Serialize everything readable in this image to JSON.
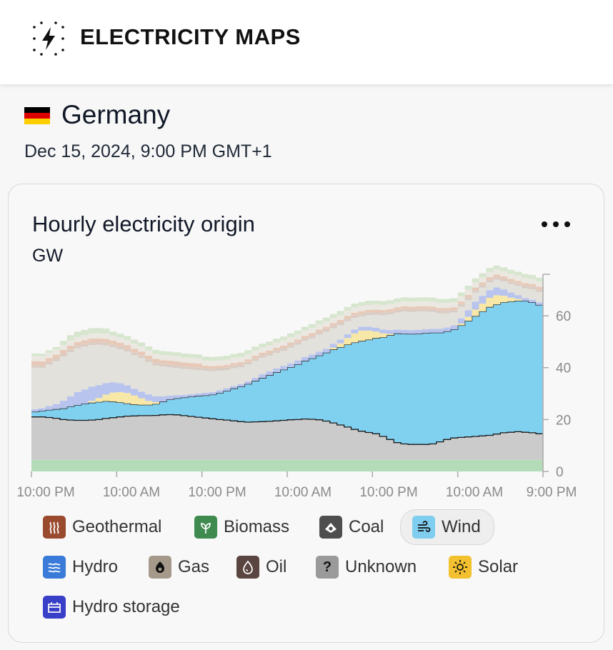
{
  "header": {
    "brand": "ELECTRICITY MAPS",
    "logo_icon": "lightning-dots-icon"
  },
  "zone": {
    "country": "Germany",
    "flag_colors": [
      "#000000",
      "#dd0000",
      "#ffce00"
    ],
    "datetime": "Dec 15, 2024, 9:00 PM GMT+1"
  },
  "card": {
    "title": "Hourly electricity origin",
    "unit": "GW",
    "menu_icon": "more-dots-icon"
  },
  "chart_data": {
    "type": "area",
    "stacked": true,
    "y_unit": "GW",
    "ylim": [
      0,
      76
    ],
    "y_ticks": [
      0,
      20,
      40,
      60
    ],
    "y_tick_labels": [
      "0",
      "20",
      "40",
      "60"
    ],
    "x_tick_labels": [
      "10:00 PM",
      "10:00 AM",
      "10:00 PM",
      "10:00 AM",
      "10:00 PM",
      "10:00 AM",
      "9:00 PM"
    ],
    "x_points_per_interval": 12,
    "highlighted_series": "Wind",
    "series": [
      {
        "name": "Biomass",
        "color": "#b5dcb8",
        "values": [
          4.5,
          4.5,
          4.5,
          4.5,
          4.5,
          4.5,
          4.5,
          4.5,
          4.5,
          4.5,
          4.5,
          4.5,
          4.5,
          4.5,
          4.5,
          4.5,
          4.5,
          4.5,
          4.5,
          4.5,
          4.5,
          4.5,
          4.5,
          4.5,
          4.5,
          4.5,
          4.5,
          4.5,
          4.5,
          4.5,
          4.5,
          4.5,
          4.5,
          4.5,
          4.5,
          4.5,
          4.5,
          4.5,
          4.5,
          4.5,
          4.5,
          4.5,
          4.5,
          4.5,
          4.5,
          4.5,
          4.5,
          4.5,
          4.5,
          4.5,
          4.5,
          4.5,
          4.5,
          4.5,
          4.5,
          4.5,
          4.5,
          4.5,
          4.5,
          4.5,
          4.5,
          4.5,
          4.5,
          4.5,
          4.5,
          4.5,
          4.5,
          4.5,
          4.5,
          4.5,
          4.5,
          4.5
        ]
      },
      {
        "name": "Coal",
        "color": "#cbcbcb",
        "values": [
          16.5,
          16.5,
          16.3,
          16.0,
          15.5,
          15.3,
          15.2,
          15.2,
          15.3,
          15.5,
          15.9,
          16.2,
          16.5,
          16.8,
          16.9,
          17.0,
          17.0,
          17.1,
          17.3,
          17.4,
          17.3,
          17.0,
          16.7,
          16.4,
          16.1,
          15.8,
          15.5,
          15.3,
          15.0,
          14.7,
          14.5,
          14.6,
          14.7,
          14.8,
          15.0,
          15.2,
          15.4,
          15.5,
          15.7,
          15.6,
          15.4,
          14.9,
          14.2,
          13.4,
          12.6,
          11.7,
          11.0,
          10.5,
          10.0,
          9.0,
          7.8,
          6.6,
          6.1,
          5.9,
          5.9,
          5.9,
          6.1,
          6.9,
          7.8,
          8.4,
          8.6,
          8.8,
          9.0,
          9.2,
          9.4,
          9.9,
          10.4,
          10.6,
          10.8,
          10.6,
          10.4,
          10.0
        ]
      },
      {
        "name": "Wind",
        "color": "#80d0f0",
        "values": [
          2.0,
          2.4,
          2.9,
          3.5,
          4.3,
          5.2,
          5.9,
          6.4,
          6.7,
          6.8,
          6.7,
          6.2,
          5.6,
          4.9,
          4.4,
          4.2,
          4.2,
          4.4,
          5.1,
          5.8,
          6.4,
          7.0,
          7.6,
          8.2,
          8.7,
          9.3,
          10.3,
          11.3,
          12.5,
          13.5,
          14.7,
          15.8,
          16.8,
          17.8,
          18.7,
          19.5,
          20.3,
          21.3,
          22.4,
          23.5,
          24.8,
          26.4,
          28.3,
          30.0,
          31.8,
          33.5,
          34.8,
          35.8,
          36.9,
          38.2,
          40.2,
          42.1,
          42.5,
          42.6,
          42.7,
          42.9,
          42.9,
          42.1,
          41.7,
          41.9,
          43.2,
          44.8,
          46.4,
          48.0,
          49.5,
          50.0,
          50.3,
          50.4,
          50.5,
          50.7,
          50.3,
          49.7
        ]
      },
      {
        "name": "Solar",
        "color": "#f7e8a8",
        "values": [
          0,
          0,
          0,
          0,
          0,
          0,
          0,
          0,
          0.7,
          1.5,
          2.5,
          3.5,
          4.0,
          4.0,
          3.5,
          2.5,
          1.5,
          0.7,
          0,
          0,
          0,
          0,
          0,
          0,
          0,
          0,
          0,
          0,
          0,
          0,
          0,
          0,
          0,
          0,
          0,
          0,
          0,
          0,
          0,
          0,
          0,
          0,
          0.7,
          1.5,
          2.5,
          3.5,
          4.0,
          3.5,
          2.5,
          1.5,
          0.5,
          0,
          0,
          0,
          0,
          0,
          0,
          0,
          0,
          0,
          0.7,
          1.5,
          2.5,
          3.0,
          3.5,
          3.5,
          2.5,
          1.5,
          0.7,
          0,
          0,
          0
        ]
      },
      {
        "name": "Hydro",
        "color": "#b8c4ee",
        "values": [
          1.0,
          1.0,
          1.5,
          2.0,
          3.0,
          4.0,
          5.0,
          5.5,
          5.5,
          5.0,
          4.5,
          4.0,
          3.5,
          3.0,
          2.5,
          2.5,
          2.5,
          2.2,
          2.0,
          1.5,
          1.2,
          1.0,
          1.0,
          1.0,
          1.0,
          1.0,
          1.0,
          1.0,
          1.0,
          1.0,
          1.0,
          1.2,
          1.5,
          1.5,
          1.5,
          1.5,
          1.5,
          1.5,
          1.5,
          1.5,
          1.5,
          1.5,
          1.5,
          1.5,
          1.5,
          1.5,
          1.5,
          1.5,
          1.5,
          1.5,
          1.5,
          1.5,
          1.5,
          1.5,
          1.5,
          1.5,
          1.5,
          1.5,
          1.5,
          1.5,
          2.0,
          2.5,
          3.0,
          3.0,
          3.0,
          3.0,
          2.5,
          2.0,
          1.5,
          1.0,
          1.0,
          1.0
        ]
      },
      {
        "name": "Gas",
        "color": "#e3e1dc",
        "values": [
          16.0,
          15.5,
          16.0,
          16.5,
          17.0,
          17.0,
          16.8,
          16.5,
          16.0,
          15.5,
          14.5,
          13.5,
          13.0,
          13.0,
          13.0,
          13.0,
          12.5,
          12.0,
          11.5,
          11.0,
          10.5,
          10.0,
          9.5,
          9.0,
          8.5,
          8.0,
          7.5,
          7.0,
          6.8,
          6.5,
          6.5,
          6.5,
          6.3,
          6.0,
          6.0,
          5.8,
          6.0,
          6.0,
          6.2,
          6.2,
          6.5,
          6.5,
          6.0,
          5.5,
          5.0,
          4.5,
          4.0,
          4.5,
          5.0,
          5.5,
          6.0,
          6.5,
          7.0,
          7.0,
          7.0,
          6.8,
          6.5,
          6.0,
          5.5,
          5.0,
          4.5,
          4.0,
          3.5,
          3.2,
          3.0,
          3.0,
          3.0,
          3.2,
          3.5,
          3.8,
          4.0,
          4.0
        ]
      },
      {
        "name": "Oil",
        "color": "#d9cdc5",
        "values": [
          1.0,
          1.0,
          1.0,
          1.0,
          1.0,
          1.0,
          1.0,
          1.0,
          1.0,
          1.0,
          1.0,
          1.0,
          1.0,
          1.0,
          1.0,
          1.0,
          1.0,
          1.0,
          1.0,
          1.0,
          1.0,
          1.0,
          1.0,
          1.0,
          1.0,
          1.0,
          1.0,
          1.0,
          1.0,
          1.0,
          1.0,
          1.0,
          1.0,
          1.0,
          1.0,
          1.0,
          1.0,
          1.0,
          1.0,
          1.0,
          1.0,
          1.0,
          1.0,
          1.0,
          1.0,
          1.0,
          1.0,
          1.0,
          1.0,
          1.0,
          1.0,
          1.0,
          1.0,
          1.0,
          1.0,
          1.0,
          1.0,
          1.0,
          1.0,
          1.0,
          1.0,
          1.0,
          1.0,
          1.0,
          1.0,
          1.0,
          1.0,
          1.0,
          1.0,
          1.0,
          1.0,
          1.0
        ]
      },
      {
        "name": "Geothermal",
        "color": "#e8c9b8",
        "values": [
          1.5,
          1.5,
          1.5,
          1.5,
          1.5,
          1.5,
          1.5,
          1.5,
          1.5,
          1.5,
          1.5,
          1.5,
          1.5,
          1.5,
          1.5,
          1.5,
          1.5,
          1.5,
          1.5,
          1.5,
          1.5,
          1.5,
          1.5,
          1.5,
          1.0,
          1.0,
          1.0,
          1.0,
          1.0,
          1.0,
          1.0,
          1.0,
          1.0,
          1.0,
          1.0,
          1.0,
          1.0,
          1.0,
          1.0,
          1.0,
          1.0,
          1.0,
          1.0,
          1.0,
          1.0,
          1.0,
          1.0,
          1.0,
          1.0,
          1.0,
          1.0,
          1.0,
          1.0,
          1.0,
          1.0,
          1.0,
          1.0,
          1.0,
          1.0,
          1.0,
          1.0,
          1.0,
          1.0,
          1.0,
          1.0,
          1.0,
          1.0,
          1.0,
          1.0,
          1.0,
          1.0,
          1.0
        ]
      },
      {
        "name": "Unknown",
        "color": "#eae8e0",
        "values": [
          2.0,
          2.0,
          2.0,
          2.0,
          2.0,
          2.0,
          2.0,
          2.0,
          2.0,
          2.0,
          2.0,
          2.0,
          2.0,
          2.0,
          2.0,
          2.0,
          2.0,
          2.0,
          2.0,
          2.0,
          2.0,
          2.0,
          2.0,
          2.0,
          2.0,
          2.0,
          2.0,
          2.0,
          2.0,
          2.0,
          2.0,
          2.0,
          2.0,
          2.0,
          2.0,
          2.0,
          2.0,
          2.0,
          2.0,
          2.0,
          2.0,
          2.0,
          2.0,
          2.0,
          2.0,
          2.0,
          2.0,
          2.0,
          2.0,
          2.0,
          2.0,
          2.0,
          2.0,
          2.0,
          2.0,
          2.0,
          2.0,
          2.0,
          2.0,
          2.0,
          2.0,
          2.0,
          2.0,
          2.0,
          2.0,
          2.0,
          2.0,
          2.0,
          2.0,
          2.0,
          2.0,
          2.0
        ]
      },
      {
        "name": "Hydro storage",
        "color": "#d7e6cf",
        "values": [
          1.0,
          1.0,
          1.0,
          1.0,
          1.5,
          2.0,
          2.0,
          2.0,
          2.0,
          2.0,
          2.0,
          1.5,
          1.5,
          1.5,
          1.5,
          1.5,
          1.5,
          1.5,
          1.5,
          1.5,
          1.5,
          1.5,
          1.5,
          1.5,
          1.5,
          1.5,
          1.5,
          1.5,
          1.5,
          1.5,
          1.5,
          1.5,
          1.5,
          1.5,
          1.5,
          1.5,
          1.5,
          1.5,
          1.5,
          1.5,
          1.5,
          1.5,
          1.5,
          1.5,
          1.5,
          1.5,
          1.5,
          1.5,
          1.5,
          1.5,
          1.5,
          1.5,
          1.5,
          1.5,
          1.5,
          1.5,
          1.5,
          1.5,
          1.5,
          1.5,
          1.5,
          1.5,
          1.5,
          1.5,
          1.5,
          1.5,
          1.5,
          1.5,
          1.5,
          1.5,
          1.5,
          1.5
        ]
      }
    ]
  },
  "legend": {
    "items": [
      {
        "label": "Geothermal",
        "color": "#9a4a2e",
        "icon": "geothermal-icon",
        "active": false
      },
      {
        "label": "Biomass",
        "color": "#3f8a4e",
        "icon": "leaf-icon",
        "active": false
      },
      {
        "label": "Coal",
        "color": "#4e4e4e",
        "icon": "coal-icon",
        "active": false
      },
      {
        "label": "Wind",
        "color": "#7fcdef",
        "icon": "wind-icon",
        "active": true
      },
      {
        "label": "Hydro",
        "color": "#3a7bd9",
        "icon": "waves-icon",
        "active": false
      },
      {
        "label": "Gas",
        "color": "#a59a8a",
        "icon": "gas-flame-icon",
        "active": false
      },
      {
        "label": "Oil",
        "color": "#5a4540",
        "icon": "oil-drop-icon",
        "active": false
      },
      {
        "label": "Unknown",
        "color": "#9a9a9a",
        "icon": "question-icon",
        "active": false
      },
      {
        "label": "Solar",
        "color": "#f3c12f",
        "icon": "sun-icon",
        "active": false
      },
      {
        "label": "Hydro storage",
        "color": "#3a3fc8",
        "icon": "battery-icon",
        "active": false
      }
    ]
  }
}
